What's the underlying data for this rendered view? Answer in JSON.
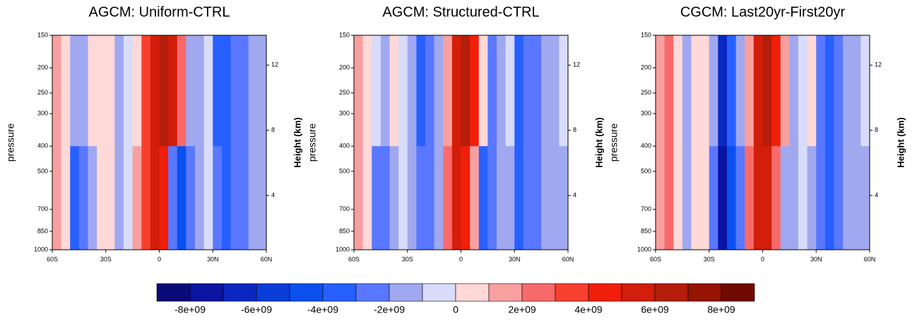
{
  "chart_data": [
    {
      "type": "contour",
      "title": "AGCM:  Uniform-CTRL",
      "ylabel": "pressure",
      "y2label": "Height (km)",
      "ylog": true,
      "xlim": [
        -60,
        60
      ],
      "xticks": [
        {
          "value": -60,
          "label": "60S"
        },
        {
          "value": -30,
          "label": "30S"
        },
        0,
        {
          "value": 30,
          "label": "30N"
        },
        {
          "value": 60,
          "label": "60N"
        }
      ],
      "ylim": [
        1000,
        150
      ],
      "yticks": [
        150,
        200,
        250,
        300,
        400,
        500,
        700,
        850,
        1000
      ],
      "y2lim": [
        0.67,
        13.83
      ],
      "y2ticks": [
        4,
        8,
        12
      ],
      "x": [
        -60,
        -55,
        -50,
        -45,
        -40,
        -35,
        -30,
        -25,
        -20,
        -15,
        -10,
        -5,
        0,
        5,
        10,
        15,
        20,
        25,
        30,
        35,
        40,
        45,
        50,
        55,
        60
      ],
      "y": [
        150,
        400,
        1000
      ],
      "values": [
        [
          2000000000.0,
          1000000000.0,
          -1000000000.0,
          -1000000000.0,
          500000000.0,
          1000000000.0,
          1000000000.0,
          -1000000000.0,
          -500000000.0,
          1000000000.0,
          4000000000.0,
          6000000000.0,
          7000000000.0,
          6000000000.0,
          3000000000.0,
          -1000000000.0,
          -1000000000.0,
          0,
          -3000000000.0,
          -3000000000.0,
          -2000000000.0,
          -2000000000.0,
          -1000000000.0,
          -1000000000.0
        ],
        [
          2000000000.0,
          1000000000.0,
          -3000000000.0,
          -2000000000.0,
          -1000000000.0,
          500000000.0,
          1000000000.0,
          -1000000000.0,
          -500000000.0,
          2000000000.0,
          4000000000.0,
          6000000000.0,
          5000000000.0,
          -2000000000.0,
          -4000000000.0,
          -2000000000.0,
          -1000000000.0,
          0,
          -2000000000.0,
          -3000000000.0,
          -2000000000.0,
          -2000000000.0,
          -1000000000.0,
          -1000000000.0
        ]
      ]
    },
    {
      "type": "contour",
      "title": "AGCM:  Structured-CTRL",
      "ylabel": "pressure",
      "y2label": "Height (km)",
      "ylog": true,
      "xlim": [
        -60,
        60
      ],
      "xticks": [
        {
          "value": -60,
          "label": "60S"
        },
        {
          "value": -30,
          "label": "30S"
        },
        0,
        {
          "value": 30,
          "label": "30N"
        },
        {
          "value": 60,
          "label": "60N"
        }
      ],
      "ylim": [
        1000,
        150
      ],
      "yticks": [
        150,
        200,
        250,
        300,
        400,
        500,
        700,
        850,
        1000
      ],
      "y2lim": [
        0.67,
        13.83
      ],
      "y2ticks": [
        4,
        8,
        12
      ],
      "x": [
        -60,
        -55,
        -50,
        -45,
        -40,
        -35,
        -30,
        -25,
        -20,
        -15,
        -10,
        -5,
        0,
        5,
        10,
        15,
        20,
        25,
        30,
        35,
        40,
        45,
        50,
        55,
        60
      ],
      "y": [
        150,
        400,
        1000
      ],
      "values": [
        [
          1500000000.0,
          1000000000.0,
          0,
          -1000000000.0,
          1000000000.0,
          0,
          -1000000000.0,
          -3000000000.0,
          -2000000000.0,
          -1000000000.0,
          2000000000.0,
          6000000000.0,
          7000000000.0,
          5000000000.0,
          1000000000.0,
          -2000000000.0,
          -1000000000.0,
          0,
          -3000000000.0,
          -2000000000.0,
          -2000000000.0,
          -1000000000.0,
          -1000000000.0,
          -500000000.0
        ],
        [
          2000000000.0,
          1000000000.0,
          -2000000000.0,
          -2000000000.0,
          -1000000000.0,
          0,
          -1000000000.0,
          -2000000000.0,
          -2000000000.0,
          -1000000000.0,
          3000000000.0,
          6000000000.0,
          5000000000.0,
          2000000000.0,
          -3000000000.0,
          -2000000000.0,
          -1000000000.0,
          -1000000000.0,
          -3000000000.0,
          -2000000000.0,
          -2000000000.0,
          -1000000000.0,
          -1000000000.0,
          -1000000000.0
        ]
      ]
    },
    {
      "type": "contour",
      "title": "CGCM:  Last20yr-First20yr",
      "ylabel": "pressure",
      "y2label": "Height (km)",
      "ylog": true,
      "xlim": [
        -60,
        60
      ],
      "xticks": [
        {
          "value": -60,
          "label": "60S"
        },
        {
          "value": -30,
          "label": "30S"
        },
        0,
        {
          "value": 30,
          "label": "30N"
        },
        {
          "value": 60,
          "label": "60N"
        }
      ],
      "ylim": [
        1000,
        150
      ],
      "yticks": [
        150,
        200,
        250,
        300,
        400,
        500,
        700,
        850,
        1000
      ],
      "y2lim": [
        0.67,
        13.83
      ],
      "y2ticks": [
        4,
        8,
        12
      ],
      "x": [
        -60,
        -55,
        -50,
        -45,
        -40,
        -35,
        -30,
        -25,
        -20,
        -15,
        -10,
        -5,
        0,
        5,
        10,
        15,
        20,
        25,
        30,
        35,
        40,
        45,
        50,
        55,
        60
      ],
      "y": [
        150,
        400,
        1000
      ],
      "values": [
        [
          2000000000.0,
          3000000000.0,
          1000000000.0,
          -1000000000.0,
          500000000.0,
          500000000.0,
          -1000000000.0,
          -6000000000.0,
          -3000000000.0,
          -1000000000.0,
          2000000000.0,
          6000000000.0,
          7000000000.0,
          5000000000.0,
          2000000000.0,
          -1000000000.0,
          0,
          500000000.0,
          -2000000000.0,
          -3000000000.0,
          -2000000000.0,
          -1000000000.0,
          -1000000000.0,
          -500000000.0
        ],
        [
          2000000000.0,
          3000000000.0,
          1000000000.0,
          -1000000000.0,
          500000000.0,
          500000000.0,
          -2000000000.0,
          -7000000000.0,
          -4000000000.0,
          -2000000000.0,
          3000000000.0,
          6000000000.0,
          6000000000.0,
          3000000000.0,
          -1000000000.0,
          -1000000000.0,
          0,
          -1000000000.0,
          -2000000000.0,
          -3000000000.0,
          -2000000000.0,
          -1000000000.0,
          -1000000000.0,
          -1000000000.0
        ]
      ]
    }
  ],
  "colorbar": {
    "levels": [
      -8000000000.0,
      -7000000000.0,
      -6000000000.0,
      -5000000000.0,
      -4000000000.0,
      -3000000000.0,
      -2000000000.0,
      -1000000000.0,
      0,
      1000000000.0,
      2000000000.0,
      3000000000.0,
      4000000000.0,
      5000000000.0,
      6000000000.0,
      7000000000.0,
      8000000000.0
    ],
    "colors": [
      "#0a0a78",
      "#0a14a0",
      "#0a28c0",
      "#0a3cd8",
      "#0a50f0",
      "#2860ff",
      "#5a78ff",
      "#a0a8f0",
      "#d8dcf8",
      "#ffd8d8",
      "#f8a0a0",
      "#f86a6a",
      "#f84030",
      "#f01e0a",
      "#d21e0a",
      "#b41e0a",
      "#961400",
      "#6e0a00"
    ],
    "ticks": [
      {
        "value": -8000000000.0,
        "label": "-8e+09"
      },
      {
        "value": -6000000000.0,
        "label": "-6e+09"
      },
      {
        "value": -4000000000.0,
        "label": "-4e+09"
      },
      {
        "value": -2000000000.0,
        "label": "-2e+09"
      },
      0,
      {
        "value": 2000000000.0,
        "label": "2e+09"
      },
      {
        "value": 4000000000.0,
        "label": "4e+09"
      },
      {
        "value": 6000000000.0,
        "label": "6e+09"
      },
      {
        "value": 8000000000.0,
        "label": "8e+09"
      }
    ]
  }
}
